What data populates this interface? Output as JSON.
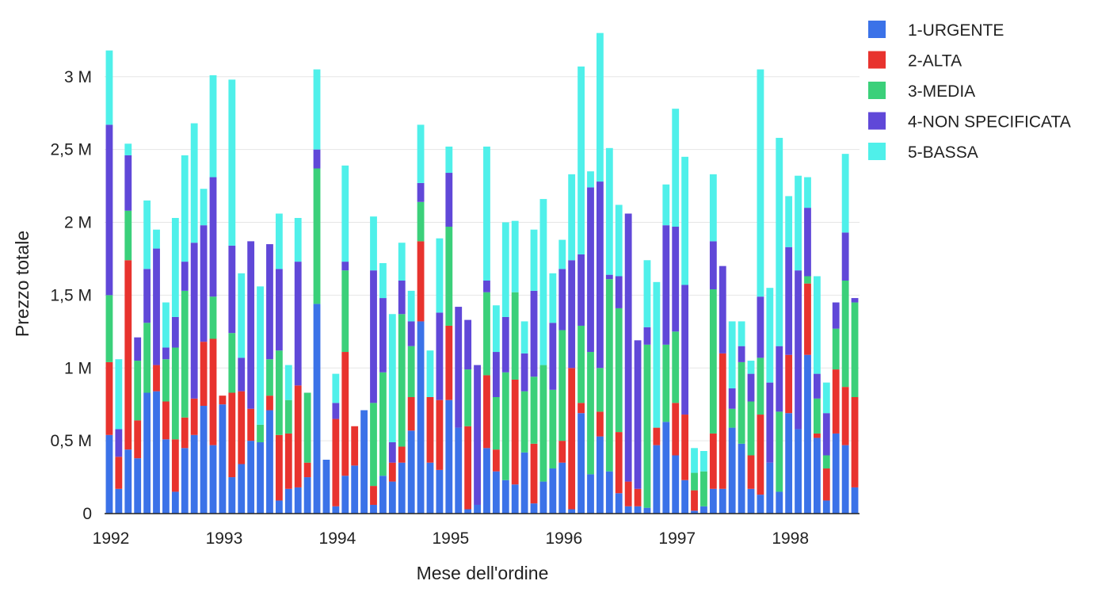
{
  "chart_data": {
    "type": "bar",
    "stacked": true,
    "xlabel": "Mese dell'ordine",
    "ylabel": "Prezzo totale",
    "ylim": [
      0,
      3200000
    ],
    "y_ticks": [
      {
        "value": 0,
        "label": "0"
      },
      {
        "value": 500000,
        "label": "0,5 M"
      },
      {
        "value": 1000000,
        "label": "1 M"
      },
      {
        "value": 1500000,
        "label": "1,5 M"
      },
      {
        "value": 2000000,
        "label": "2 M"
      },
      {
        "value": 2500000,
        "label": "2,5 M"
      },
      {
        "value": 3000000,
        "label": "3 M"
      }
    ],
    "x_ticks": [
      {
        "index": 0,
        "label": "1992"
      },
      {
        "index": 12,
        "label": "1993"
      },
      {
        "index": 24,
        "label": "1994"
      },
      {
        "index": 36,
        "label": "1995"
      },
      {
        "index": 48,
        "label": "1996"
      },
      {
        "index": 60,
        "label": "1997"
      },
      {
        "index": 72,
        "label": "1998"
      }
    ],
    "grid": true,
    "legend_position": "top-right",
    "categories": [
      "1992-01",
      "1992-02",
      "1992-03",
      "1992-04",
      "1992-05",
      "1992-06",
      "1992-07",
      "1992-08",
      "1992-09",
      "1992-10",
      "1992-11",
      "1992-12",
      "1993-01",
      "1993-02",
      "1993-03",
      "1993-04",
      "1993-05",
      "1993-06",
      "1993-07",
      "1993-08",
      "1993-09",
      "1993-10",
      "1993-11",
      "1993-12",
      "1994-01",
      "1994-02",
      "1994-03",
      "1994-04",
      "1994-05",
      "1994-06",
      "1994-07",
      "1994-08",
      "1994-09",
      "1994-10",
      "1994-11",
      "1994-12",
      "1995-01",
      "1995-02",
      "1995-03",
      "1995-04",
      "1995-05",
      "1995-06",
      "1995-07",
      "1995-08",
      "1995-09",
      "1995-10",
      "1995-11",
      "1995-12",
      "1996-01",
      "1996-02",
      "1996-03",
      "1996-04",
      "1996-05",
      "1996-06",
      "1996-07",
      "1996-08",
      "1996-09",
      "1996-10",
      "1996-11",
      "1996-12",
      "1997-01",
      "1997-02",
      "1997-03",
      "1997-04",
      "1997-05",
      "1997-06",
      "1997-07",
      "1997-08",
      "1997-09",
      "1997-10",
      "1997-11",
      "1997-12",
      "1998-01",
      "1998-02",
      "1998-03",
      "1998-04",
      "1998-05",
      "1998-06",
      "1998-07",
      "1998-08"
    ],
    "series": [
      {
        "name": "1-URGENTE",
        "color": "#3b72e8",
        "values": [
          540000,
          170000,
          440000,
          380000,
          830000,
          840000,
          510000,
          150000,
          450000,
          540000,
          740000,
          470000,
          750000,
          250000,
          340000,
          500000,
          490000,
          710000,
          90000,
          170000,
          180000,
          250000,
          1440000,
          370000,
          50000,
          260000,
          330000,
          710000,
          60000,
          260000,
          220000,
          350000,
          570000,
          1320000,
          350000,
          300000,
          780000,
          590000,
          30000,
          60000,
          450000,
          290000,
          230000,
          200000,
          420000,
          70000,
          220000,
          310000,
          350000,
          30000,
          690000,
          270000,
          530000,
          290000,
          140000,
          50000,
          50000,
          40000,
          470000,
          630000,
          400000,
          230000,
          20000,
          50000,
          170000,
          170000,
          590000,
          480000,
          170000,
          130000,
          350000,
          150000,
          690000,
          580000,
          1090000,
          520000,
          90000,
          550000,
          470000,
          180000
        ]
      },
      {
        "name": "2-ALTA",
        "color": "#e8332e",
        "values": [
          500000,
          220000,
          1300000,
          260000,
          0,
          180000,
          260000,
          360000,
          210000,
          250000,
          440000,
          730000,
          60000,
          580000,
          500000,
          220000,
          0,
          100000,
          450000,
          380000,
          700000,
          100000,
          0,
          0,
          600000,
          850000,
          270000,
          0,
          130000,
          0,
          130000,
          110000,
          230000,
          550000,
          450000,
          480000,
          510000,
          0,
          570000,
          0,
          500000,
          150000,
          0,
          720000,
          0,
          410000,
          0,
          0,
          150000,
          970000,
          70000,
          0,
          170000,
          0,
          420000,
          170000,
          120000,
          0,
          120000,
          0,
          360000,
          450000,
          140000,
          0,
          380000,
          930000,
          0,
          0,
          230000,
          550000,
          0,
          0,
          400000,
          0,
          490000,
          30000,
          220000,
          440000,
          400000,
          620000
        ]
      },
      {
        "name": "3-MEDIA",
        "color": "#3bd07a",
        "values": [
          460000,
          0,
          340000,
          410000,
          480000,
          0,
          290000,
          630000,
          870000,
          0,
          0,
          290000,
          0,
          410000,
          0,
          0,
          120000,
          250000,
          580000,
          230000,
          0,
          480000,
          930000,
          0,
          0,
          560000,
          0,
          0,
          570000,
          710000,
          0,
          910000,
          350000,
          270000,
          0,
          0,
          680000,
          0,
          390000,
          0,
          570000,
          360000,
          740000,
          600000,
          420000,
          460000,
          800000,
          540000,
          760000,
          0,
          530000,
          840000,
          300000,
          1320000,
          850000,
          0,
          0,
          1120000,
          0,
          530000,
          490000,
          0,
          120000,
          240000,
          990000,
          0,
          130000,
          560000,
          370000,
          390000,
          0,
          550000,
          0,
          0,
          50000,
          240000,
          90000,
          280000,
          730000,
          650000
        ]
      },
      {
        "name": "4-NON SPECIFICATA",
        "color": "#6048d8",
        "values": [
          1170000,
          190000,
          380000,
          160000,
          370000,
          800000,
          80000,
          210000,
          200000,
          1070000,
          800000,
          820000,
          0,
          600000,
          230000,
          1150000,
          0,
          790000,
          560000,
          0,
          850000,
          0,
          130000,
          0,
          110000,
          60000,
          0,
          0,
          910000,
          510000,
          140000,
          230000,
          170000,
          130000,
          0,
          600000,
          370000,
          830000,
          340000,
          960000,
          80000,
          310000,
          380000,
          0,
          260000,
          590000,
          0,
          460000,
          420000,
          740000,
          490000,
          1130000,
          1280000,
          30000,
          220000,
          1840000,
          1020000,
          120000,
          0,
          820000,
          720000,
          890000,
          0,
          0,
          330000,
          600000,
          140000,
          110000,
          190000,
          420000,
          550000,
          450000,
          740000,
          1090000,
          470000,
          170000,
          290000,
          180000,
          330000,
          30000
        ]
      },
      {
        "name": "5-BASSA",
        "color": "#4ff0ea",
        "values": [
          510000,
          480000,
          80000,
          0,
          470000,
          130000,
          310000,
          680000,
          730000,
          820000,
          250000,
          700000,
          0,
          1140000,
          580000,
          0,
          950000,
          0,
          380000,
          240000,
          300000,
          0,
          550000,
          0,
          200000,
          660000,
          0,
          0,
          370000,
          240000,
          880000,
          260000,
          210000,
          400000,
          320000,
          510000,
          180000,
          0,
          0,
          0,
          920000,
          320000,
          650000,
          490000,
          220000,
          420000,
          1140000,
          340000,
          200000,
          590000,
          1290000,
          110000,
          1020000,
          870000,
          490000,
          0,
          0,
          460000,
          1000000,
          280000,
          810000,
          880000,
          170000,
          140000,
          460000,
          0,
          460000,
          170000,
          90000,
          1560000,
          650000,
          1430000,
          350000,
          650000,
          210000,
          670000,
          210000,
          0,
          540000,
          0
        ]
      }
    ]
  }
}
